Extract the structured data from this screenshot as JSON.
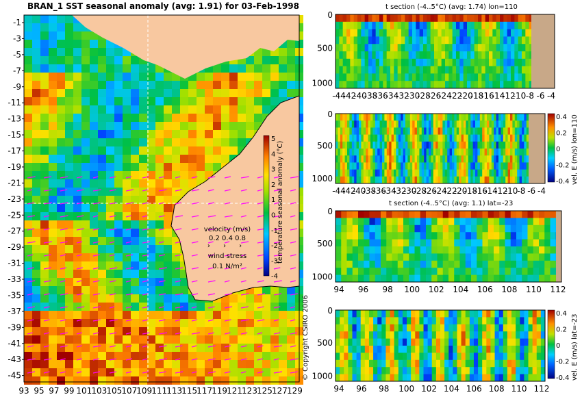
{
  "header": {
    "main_title": "BRAN_1 SST seasonal anomaly (avg: 1.91) for 03-Feb-1998",
    "section1_title": "t section (-4..5°C) (avg: 1.74) lon=110",
    "section3_title": "t section (-4..5°C) (avg: 1.1) lat=-23"
  },
  "copyright": "© Copyright CSIRO 2006",
  "map": {
    "lat_ticks": [
      "-1",
      "-3",
      "-5",
      "-7",
      "-9",
      "-11",
      "-13",
      "-15",
      "-17",
      "-19",
      "-21",
      "-23",
      "-25",
      "-27",
      "-29",
      "-31",
      "-33",
      "-35",
      "-37",
      "-39",
      "-41",
      "-43",
      "-45"
    ],
    "lon_ticks": [
      "93",
      "95",
      "97",
      "99",
      "101",
      "103",
      "105",
      "107",
      "109",
      "111",
      "113",
      "115",
      "117",
      "119",
      "121",
      "123",
      "125",
      "127",
      "129"
    ],
    "colorbar_label": "temperature seasonal anomaly (°C)",
    "colorbar_ticks": [
      "5",
      "4",
      "3",
      "2",
      "1",
      "0",
      "-1",
      "-2",
      "-3",
      "-4"
    ],
    "velocity_label": "velocity (m/s)",
    "velocity_values": "0.2 0.4 0.8",
    "wind_label": "wind stress",
    "wind_value": "0.1 N/m²",
    "colors": {
      "ocean_warm": "#f0a020",
      "land": "#f8c8a0",
      "vector": "#ff00ff"
    }
  },
  "chart_data": [
    {
      "type": "heatmap",
      "title": "BRAN_1 SST seasonal anomaly (avg: 1.91) for 03-Feb-1998",
      "x_ticks": [
        93,
        95,
        97,
        99,
        101,
        103,
        105,
        107,
        109,
        111,
        113,
        115,
        117,
        119,
        121,
        123,
        125,
        127,
        129
      ],
      "y_ticks": [
        -1,
        -3,
        -5,
        -7,
        -9,
        -11,
        -13,
        -15,
        -17,
        -19,
        -21,
        -23,
        -25,
        -27,
        -29,
        -31,
        -33,
        -35,
        -37,
        -39,
        -41,
        -43,
        -45
      ],
      "colorbar_range": [
        -4,
        5
      ],
      "colorbar_label": "temperature seasonal anomaly (°C)"
    },
    {
      "type": "heatmap",
      "title": "t section (-4..5°C) (avg: 1.74) lon=110",
      "x_ticks": [
        "-44",
        "-42",
        "-40",
        "-38",
        "-36",
        "-34",
        "-32",
        "-30",
        "-28",
        "-26",
        "-24",
        "-22",
        "-20",
        "-18",
        "-16",
        "-14",
        "-12",
        "-10",
        "-8",
        "-6",
        "-4"
      ],
      "y_ticks": [
        "0",
        "500",
        "1000"
      ]
    },
    {
      "type": "heatmap",
      "x_ticks": [
        "-44",
        "-42",
        "-40",
        "-38",
        "-36",
        "-34",
        "-32",
        "-30",
        "-28",
        "-26",
        "-24",
        "-22",
        "-20",
        "-18",
        "-16",
        "-14",
        "-12",
        "-10",
        "-8",
        "-6",
        "-4"
      ],
      "y_ticks": [
        "0",
        "500",
        "1000"
      ],
      "colorbar_label": "vel. E (m/s) lon=110",
      "colorbar_ticks": [
        "0.4",
        "0.2",
        "0",
        "-0.2",
        "-0.4"
      ]
    },
    {
      "type": "heatmap",
      "title": "t section (-4..5°C) (avg: 1.1) lat=-23",
      "x_ticks": [
        "94",
        "96",
        "98",
        "100",
        "102",
        "104",
        "106",
        "108",
        "110",
        "112"
      ],
      "y_ticks": [
        "0",
        "500",
        "1000"
      ]
    },
    {
      "type": "heatmap",
      "x_ticks": [
        "94",
        "96",
        "98",
        "100",
        "102",
        "104",
        "106",
        "108",
        "110",
        "112"
      ],
      "y_ticks": [
        "0",
        "500",
        "1000"
      ],
      "colorbar_label": "vel. E (m/s) lat=-23",
      "colorbar_ticks": [
        "0.4",
        "0.2",
        "0",
        "-0.2",
        "-0.4"
      ]
    }
  ]
}
